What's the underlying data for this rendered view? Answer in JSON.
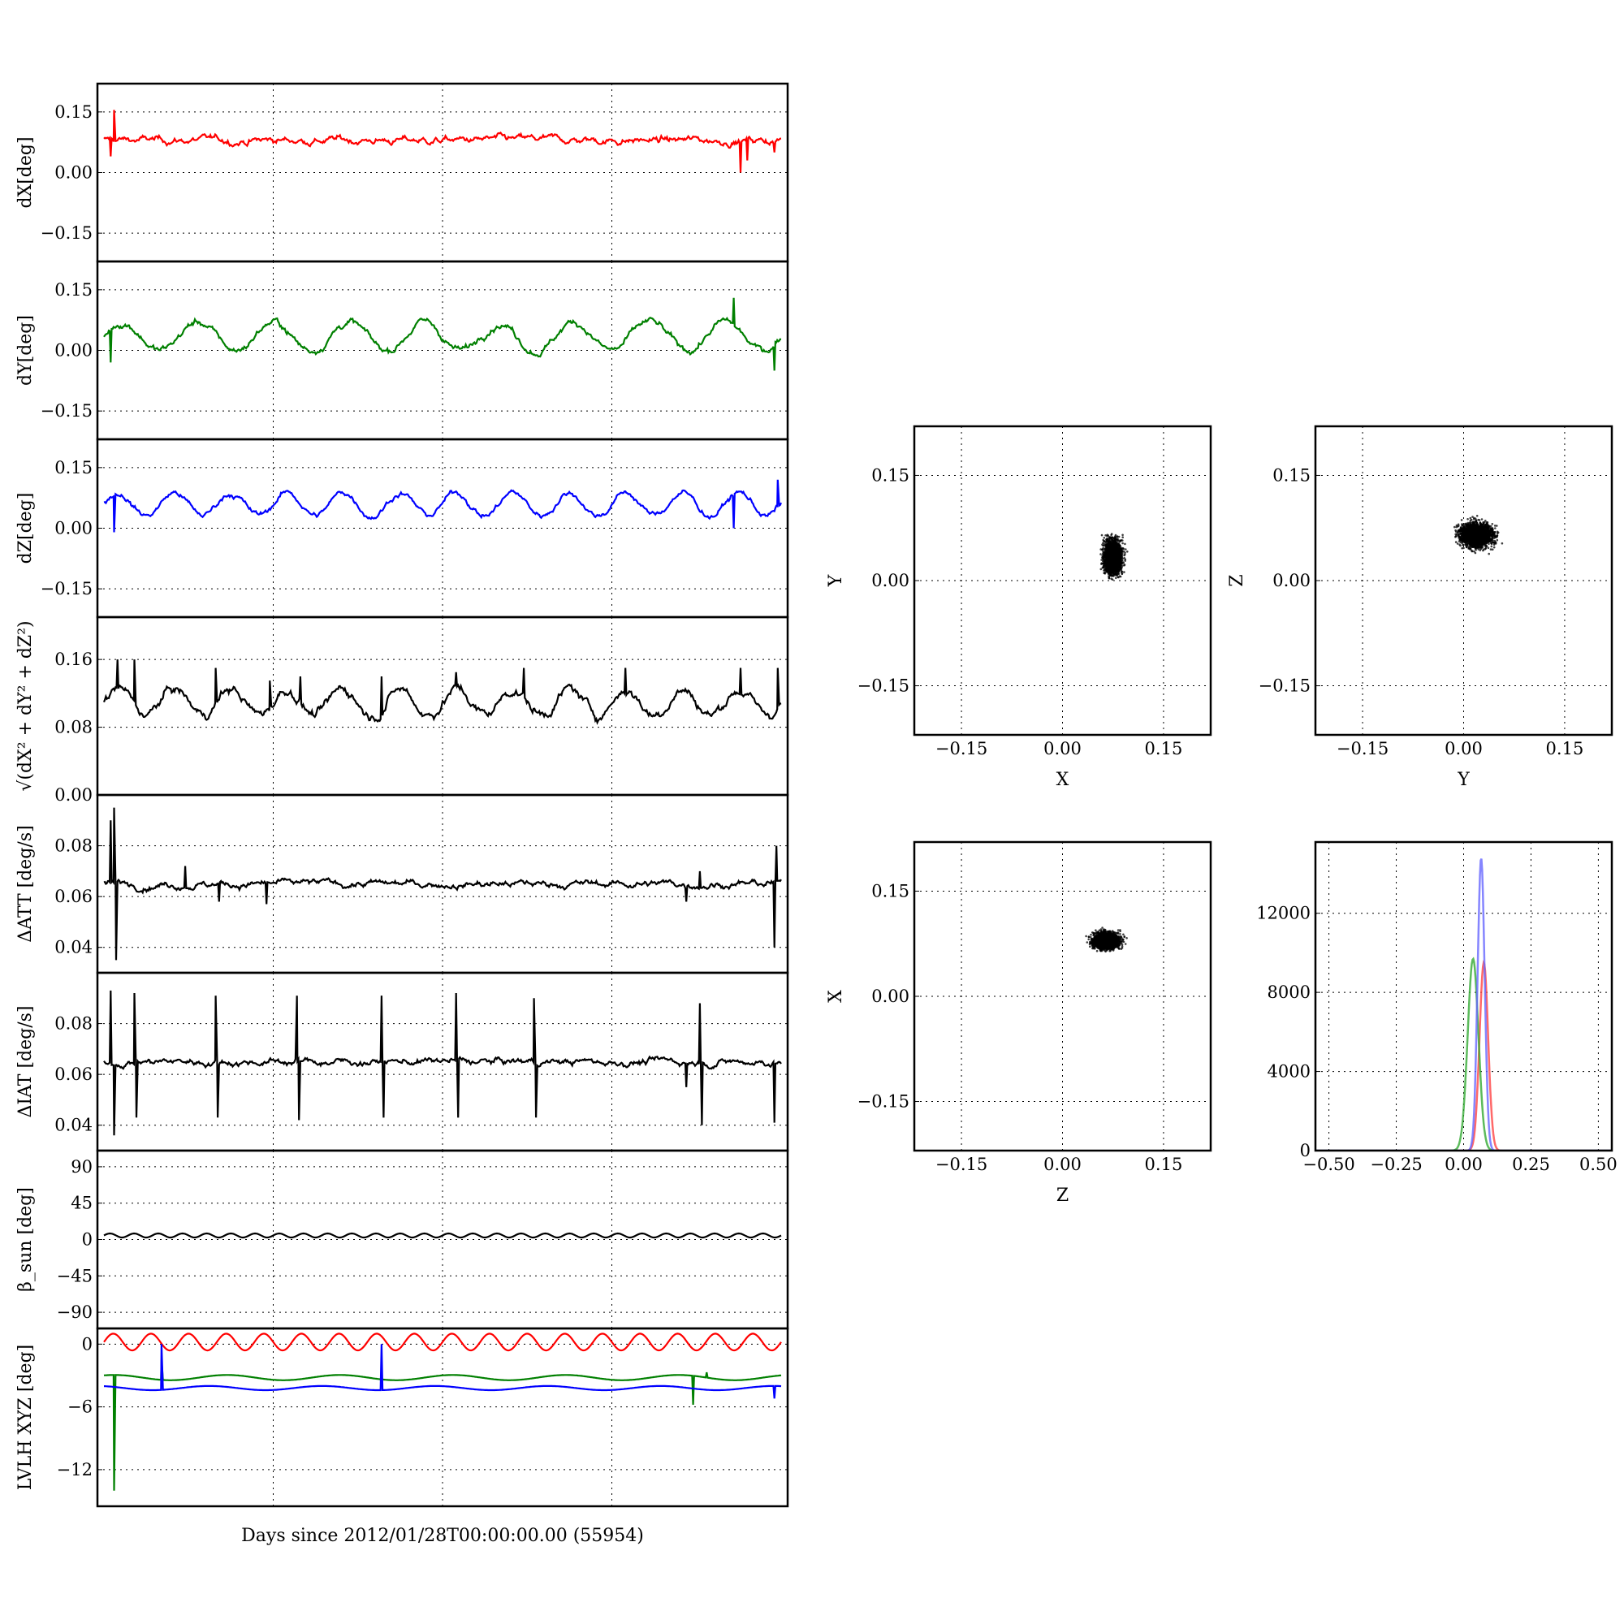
{
  "figure": {
    "xlabel": "Days since 2012/01/28T00:00:00.00 (55954)"
  },
  "chart_data": [
    {
      "id": "dX",
      "type": "line",
      "ylabel": "dX[deg]",
      "ylim": [
        -0.22,
        0.22
      ],
      "yticks": [
        -0.15,
        0.0,
        0.15
      ],
      "ytick_labels": [
        "−0.15",
        "0.00",
        "0.15"
      ],
      "grid": true,
      "series": [
        {
          "color": "#ff0000",
          "base": 0.08,
          "amp": 0.012,
          "periods": 0,
          "noise": 0.012,
          "spikes": [
            [
              0.015,
              0.155
            ],
            [
              0.01,
              0.04
            ],
            [
              0.94,
              0.0
            ],
            [
              0.95,
              0.03
            ],
            [
              0.99,
              0.05
            ]
          ]
        }
      ]
    },
    {
      "id": "dY",
      "type": "line",
      "ylabel": "dY[deg]",
      "ylim": [
        -0.22,
        0.22
      ],
      "yticks": [
        -0.15,
        0.0,
        0.15
      ],
      "ytick_labels": [
        "−0.15",
        "0.00",
        "0.15"
      ],
      "grid": true,
      "series": [
        {
          "color": "#008000",
          "base": 0.035,
          "amp": 0.035,
          "periods": 9,
          "noise": 0.012,
          "spikes": [
            [
              0.93,
              0.13
            ],
            [
              0.99,
              -0.05
            ],
            [
              0.01,
              -0.03
            ]
          ]
        }
      ]
    },
    {
      "id": "dZ",
      "type": "line",
      "ylabel": "dZ[deg]",
      "ylim": [
        -0.22,
        0.22
      ],
      "yticks": [
        -0.15,
        0.0,
        0.15
      ],
      "ytick_labels": [
        "−0.15",
        "0.00",
        "0.15"
      ],
      "grid": true,
      "series": [
        {
          "color": "#0000ff",
          "base": 0.06,
          "amp": 0.028,
          "periods": 12,
          "noise": 0.01,
          "spikes": [
            [
              0.015,
              -0.01
            ],
            [
              0.93,
              0.0
            ],
            [
              0.995,
              0.12
            ]
          ]
        }
      ]
    },
    {
      "id": "dR",
      "type": "line",
      "ylabel": "√(dX² + dY² + dZ²)",
      "ylim": [
        0.0,
        0.21
      ],
      "yticks": [
        0.0,
        0.08,
        0.16
      ],
      "ytick_labels": [
        "0.00",
        "0.08",
        "0.16"
      ],
      "grid": true,
      "series": [
        {
          "color": "#000000",
          "base": 0.11,
          "amp": 0.015,
          "periods": 12,
          "noise": 0.008,
          "spikes": [
            [
              0.02,
              0.16
            ],
            [
              0.045,
              0.16
            ],
            [
              0.165,
              0.15
            ],
            [
              0.245,
              0.135
            ],
            [
              0.29,
              0.14
            ],
            [
              0.41,
              0.14
            ],
            [
              0.52,
              0.145
            ],
            [
              0.62,
              0.15
            ],
            [
              0.77,
              0.15
            ],
            [
              0.94,
              0.15
            ],
            [
              0.995,
              0.15
            ]
          ]
        }
      ]
    },
    {
      "id": "dATT",
      "type": "line",
      "ylabel": "ΔATT [deg/s]",
      "ylim": [
        0.03,
        0.1
      ],
      "yticks": [
        0.04,
        0.06,
        0.08
      ],
      "ytick_labels": [
        "0.04",
        "0.06",
        "0.08"
      ],
      "grid": true,
      "series": [
        {
          "color": "#000000",
          "base": 0.065,
          "amp": 0.0,
          "periods": 0,
          "noise": 0.0018,
          "spikes": [
            [
              0.01,
              0.09
            ],
            [
              0.015,
              0.095
            ],
            [
              0.018,
              0.035
            ],
            [
              0.12,
              0.072
            ],
            [
              0.17,
              0.058
            ],
            [
              0.24,
              0.057
            ],
            [
              0.86,
              0.058
            ],
            [
              0.88,
              0.07
            ],
            [
              0.99,
              0.04
            ],
            [
              0.993,
              0.08
            ]
          ]
        }
      ]
    },
    {
      "id": "dIAT",
      "type": "line",
      "ylabel": "ΔIAT [deg/s]",
      "ylim": [
        0.03,
        0.1
      ],
      "yticks": [
        0.04,
        0.06,
        0.08
      ],
      "ytick_labels": [
        "0.04",
        "0.06",
        "0.08"
      ],
      "grid": true,
      "series": [
        {
          "color": "#000000",
          "base": 0.065,
          "amp": 0.0,
          "periods": 0,
          "noise": 0.0018,
          "spikes": [
            [
              0.01,
              0.093
            ],
            [
              0.015,
              0.036
            ],
            [
              0.045,
              0.092
            ],
            [
              0.048,
              0.043
            ],
            [
              0.165,
              0.091
            ],
            [
              0.168,
              0.043
            ],
            [
              0.285,
              0.091
            ],
            [
              0.288,
              0.042
            ],
            [
              0.41,
              0.091
            ],
            [
              0.413,
              0.043
            ],
            [
              0.52,
              0.092
            ],
            [
              0.523,
              0.043
            ],
            [
              0.635,
              0.09
            ],
            [
              0.638,
              0.043
            ],
            [
              0.86,
              0.055
            ],
            [
              0.88,
              0.088
            ],
            [
              0.883,
              0.04
            ],
            [
              0.99,
              0.041
            ]
          ]
        }
      ]
    },
    {
      "id": "beta",
      "type": "line",
      "ylabel": "β_sun [deg]",
      "ylim": [
        -110,
        110
      ],
      "yticks": [
        -90,
        -45,
        0,
        45,
        90
      ],
      "ytick_labels": [
        "−90",
        "−45",
        "0",
        "45",
        "90"
      ],
      "grid": true,
      "series": [
        {
          "color": "#000000",
          "base": 5,
          "amp": 2.5,
          "periods": 28,
          "noise": 0.0,
          "spikes": []
        }
      ]
    },
    {
      "id": "lvlh",
      "type": "line",
      "ylabel": "LVLH XYZ [deg]",
      "ylim": [
        -15.5,
        1.5
      ],
      "yticks": [
        -12,
        -6,
        0
      ],
      "ytick_labels": [
        "−12",
        "−6",
        "0"
      ],
      "grid": true,
      "series": [
        {
          "color": "#ff0000",
          "base": 0.2,
          "amp": 0.8,
          "periods": 18,
          "noise": 0.0,
          "spikes": []
        },
        {
          "color": "#008000",
          "base": -3.2,
          "amp": 0.25,
          "periods": 6,
          "noise": 0.0,
          "spikes": [
            [
              0.015,
              -14.0
            ],
            [
              0.085,
              -1.5
            ],
            [
              0.87,
              -5.8
            ],
            [
              0.89,
              -2.7
            ]
          ]
        },
        {
          "color": "#0000ff",
          "base": -4.2,
          "amp": 0.2,
          "periods": 6,
          "noise": 0.0,
          "spikes": [
            [
              0.085,
              0.0
            ],
            [
              0.41,
              0.0
            ],
            [
              0.99,
              -5.2
            ]
          ]
        }
      ]
    },
    {
      "id": "scatter-XY",
      "type": "scatter",
      "xlabel": "X",
      "ylabel": "Y",
      "xlim": [
        -0.22,
        0.22
      ],
      "ylim": [
        -0.22,
        0.22
      ],
      "ticks": [
        -0.15,
        0.0,
        0.15
      ],
      "tick_labels": [
        "−0.15",
        "0.00",
        "0.15"
      ],
      "grid": true,
      "cloud": {
        "center": [
          0.075,
          0.035
        ],
        "spread": [
          0.014,
          0.025
        ],
        "color": "#000000"
      }
    },
    {
      "id": "scatter-YZ",
      "type": "scatter",
      "xlabel": "Y",
      "ylabel": "Z",
      "xlim": [
        -0.22,
        0.22
      ],
      "ylim": [
        -0.22,
        0.22
      ],
      "ticks": [
        -0.15,
        0.0,
        0.15
      ],
      "tick_labels": [
        "−0.15",
        "0.00",
        "0.15"
      ],
      "grid": true,
      "cloud": {
        "center": [
          0.02,
          0.065
        ],
        "spread": [
          0.025,
          0.018
        ],
        "color": "#000000"
      }
    },
    {
      "id": "scatter-ZX",
      "type": "scatter",
      "xlabel": "Z",
      "ylabel": "X",
      "xlim": [
        -0.22,
        0.22
      ],
      "ylim": [
        -0.22,
        0.22
      ],
      "ticks": [
        -0.15,
        0.0,
        0.15
      ],
      "tick_labels": [
        "−0.15",
        "0.00",
        "0.15"
      ],
      "grid": true,
      "cloud": {
        "center": [
          0.065,
          0.08
        ],
        "spread": [
          0.02,
          0.012
        ],
        "color": "#000000"
      }
    },
    {
      "id": "histogram",
      "type": "line",
      "xlim": [
        -0.55,
        0.55
      ],
      "ylim": [
        0,
        15600
      ],
      "xticks": [
        -0.5,
        -0.25,
        0.0,
        0.25,
        0.5
      ],
      "xtick_labels": [
        "−0.50",
        "−0.25",
        "0.00",
        "0.25",
        "0.50"
      ],
      "yticks": [
        0,
        4000,
        8000,
        12000
      ],
      "ytick_labels": [
        "0",
        "4000",
        "8000",
        "12000"
      ],
      "grid": true,
      "series": [
        {
          "color": "#ff4444",
          "peak_x": 0.075,
          "peak": 9500,
          "width": 0.016
        },
        {
          "color": "#33aa33",
          "peak_x": 0.035,
          "peak": 9700,
          "width": 0.02
        },
        {
          "color": "#6666ff",
          "peak_x": 0.065,
          "peak": 14800,
          "width": 0.013
        }
      ]
    }
  ]
}
